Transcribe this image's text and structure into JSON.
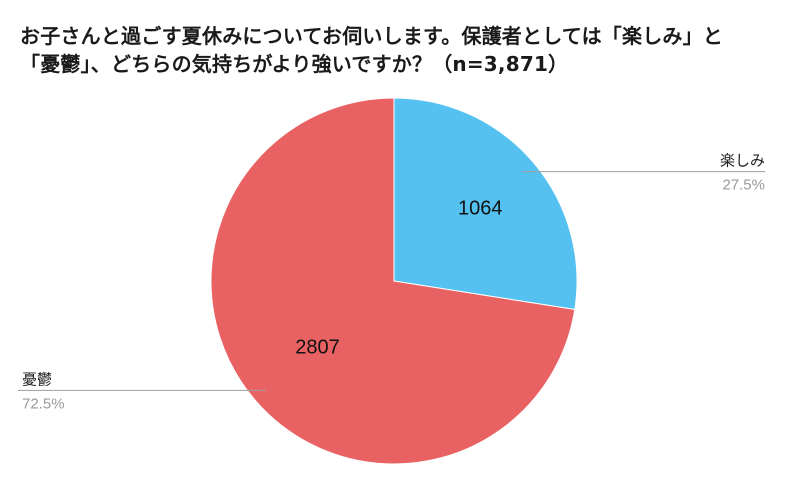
{
  "chart_data": {
    "type": "pie",
    "title": "お子さんと過ごす夏休みについてお伺いします。保護者としては「楽しみ」と「憂鬱」、どちらの気持ちがより強いですか？（n=3,871）",
    "slices": [
      {
        "name": "楽しみ",
        "value": 1064,
        "value_label": "1064",
        "percent_label": "27.5%",
        "color": "#54c1f0"
      },
      {
        "name": "憂鬱",
        "value": 2807,
        "value_label": "2807",
        "percent_label": "72.5%",
        "color": "#e96263"
      }
    ],
    "start_angle_deg": 0,
    "direction": "clockwise",
    "legend": "none",
    "label_style": "external leader lines with name and percent"
  }
}
